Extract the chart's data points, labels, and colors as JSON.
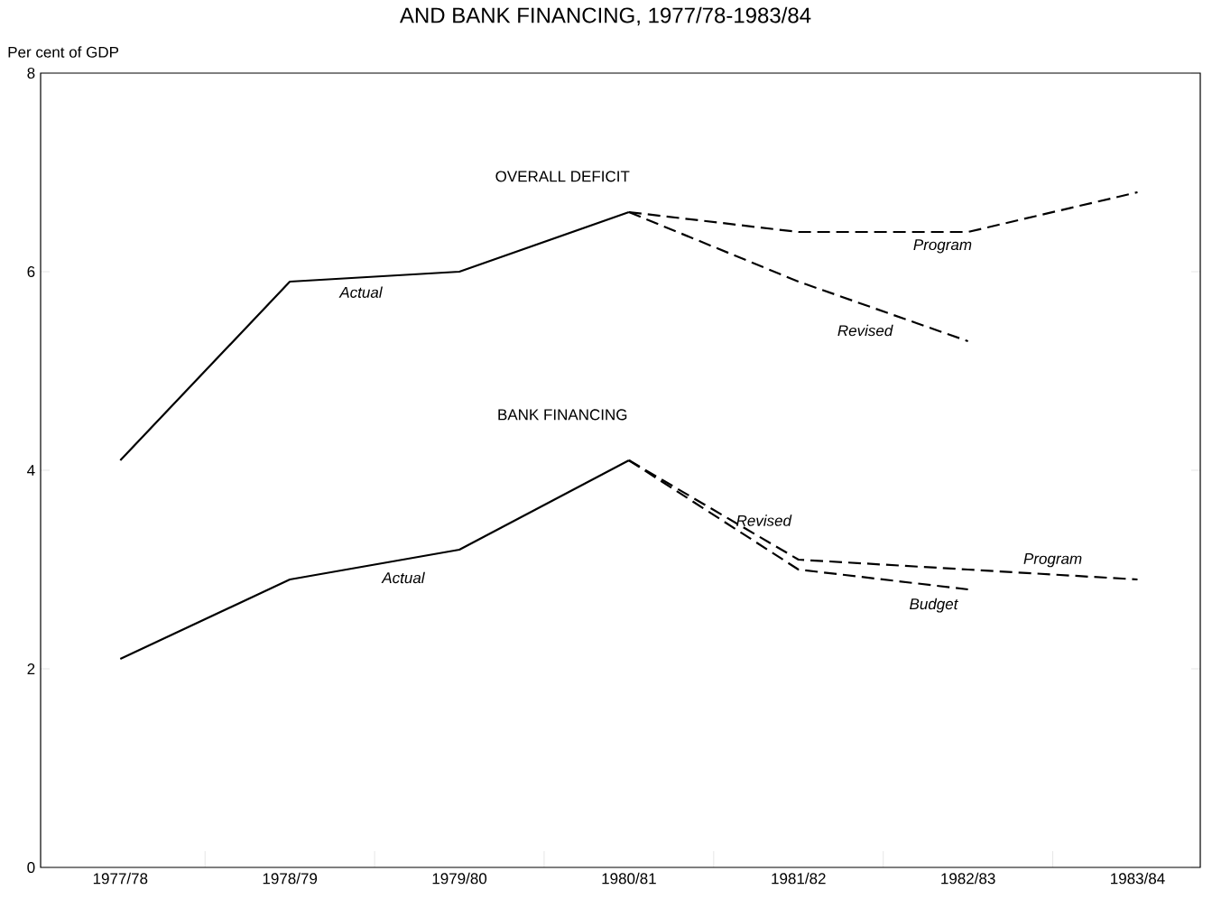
{
  "chart_data": {
    "type": "line",
    "title": "AND BANK FINANCING, 1977/78-1983/84",
    "ylabel": "Per cent of GDP",
    "categories": [
      "1977/78",
      "1978/79",
      "1979/80",
      "1980/81",
      "1981/82",
      "1982/83",
      "1983/84"
    ],
    "ylim": [
      0,
      8
    ],
    "yticks": [
      0,
      2,
      4,
      6,
      8
    ],
    "grid": false,
    "legend": false,
    "marker": "none",
    "series": [
      {
        "name": "Actual",
        "color": "#000000",
        "line_style": "solid",
        "values": [
          4.1,
          5.9,
          6.0,
          6.6,
          null,
          null,
          null
        ]
      },
      {
        "name": "Program",
        "color": "#000000",
        "line_style": "dashed",
        "values": [
          null,
          null,
          null,
          6.6,
          6.4,
          6.4,
          6.8
        ]
      },
      {
        "name": "Revised",
        "color": "#000000",
        "line_style": "dashed",
        "values": [
          null,
          null,
          null,
          6.6,
          5.9,
          5.3,
          null
        ]
      },
      {
        "name": "Actual",
        "color": "#000000",
        "line_style": "solid",
        "values": [
          2.1,
          2.9,
          3.2,
          4.1,
          null,
          null,
          null
        ]
      },
      {
        "name": "Program",
        "color": "#000000",
        "line_style": "dashed",
        "values": [
          null,
          null,
          null,
          4.1,
          3.1,
          3.0,
          2.9
        ]
      },
      {
        "name": "Revised",
        "color": "#000000",
        "line_style": "dashed",
        "values": [
          null,
          null,
          null,
          4.1,
          3.0,
          2.8,
          null
        ]
      }
    ],
    "annotations": [
      "OVERALL DEFICIT",
      "BANK FINANCING",
      "Budget"
    ]
  }
}
